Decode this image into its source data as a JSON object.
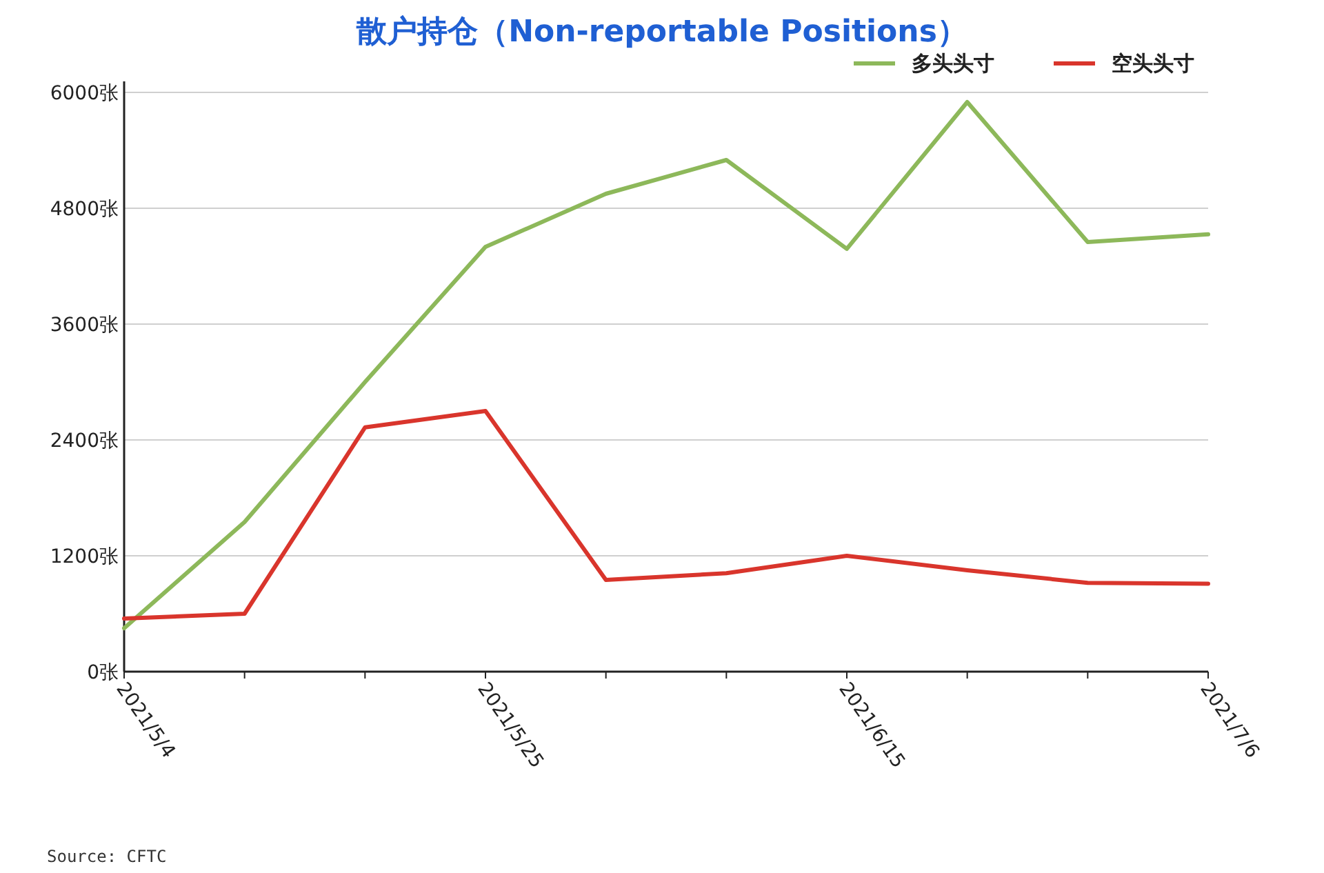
{
  "chart_data": {
    "type": "line",
    "title": "散户持仓（Non-reportable Positions）",
    "categories": [
      "2021/5/4",
      null,
      null,
      "2021/5/25",
      null,
      null,
      "2021/6/15",
      null,
      null,
      "2021/7/6"
    ],
    "series": [
      {
        "name": "多头头寸",
        "color": "#8db85a",
        "values": [
          450,
          1550,
          3000,
          4400,
          4950,
          5300,
          4380,
          5900,
          4450,
          4530
        ]
      },
      {
        "name": "空头头寸",
        "color": "#d9352c",
        "values": [
          550,
          600,
          2530,
          2700,
          950,
          1020,
          1200,
          1050,
          920,
          910
        ]
      }
    ],
    "ylim": [
      0,
      6000
    ],
    "yticks": [
      {
        "value": 0,
        "label": "0张"
      },
      {
        "value": 1200,
        "label": "1200张"
      },
      {
        "value": 2400,
        "label": "2400张"
      },
      {
        "value": 3600,
        "label": "3600张"
      },
      {
        "value": 4800,
        "label": "4800张"
      },
      {
        "value": 6000,
        "label": "6000张"
      }
    ],
    "grid": "y",
    "legend": "top right",
    "annotations": [
      "Source: CFTC"
    ]
  }
}
